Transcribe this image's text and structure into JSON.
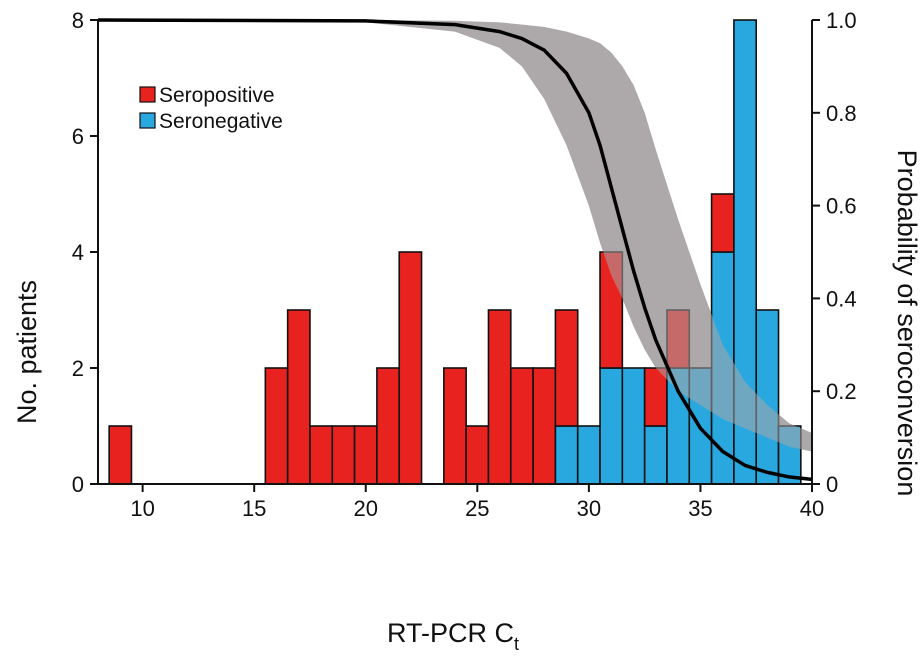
{
  "chart_data": {
    "type": "bar",
    "stacked": true,
    "bin_width": 1,
    "x": [
      9,
      16,
      17,
      18,
      19,
      20,
      21,
      22,
      24,
      25,
      26,
      27,
      28,
      29,
      30,
      31,
      32,
      33,
      34,
      35,
      36,
      37,
      38,
      39
    ],
    "series": [
      {
        "name": "Seronegative",
        "color": "#29a8e0",
        "values": [
          0,
          0,
          0,
          0,
          0,
          0,
          0,
          0,
          0,
          0,
          0,
          0,
          0,
          1,
          1,
          2,
          2,
          1,
          2,
          2,
          4,
          8,
          3,
          1
        ]
      },
      {
        "name": "Seropositive",
        "color": "#e8231f",
        "values": [
          1,
          2,
          3,
          1,
          1,
          1,
          2,
          4,
          2,
          1,
          3,
          2,
          2,
          2,
          0,
          2,
          0,
          1,
          1,
          0,
          1,
          0,
          0,
          0
        ]
      }
    ],
    "xlabel": "RT-PCR C",
    "xlabel_sub": "t",
    "ylabel": "No. patients",
    "y2label": "Probability of seroconversion",
    "xlim": [
      8,
      40
    ],
    "ylim": [
      0,
      8
    ],
    "y2lim": [
      0,
      1
    ],
    "xticks": [
      10,
      15,
      20,
      25,
      30,
      35,
      40
    ],
    "yticks": [
      0,
      2,
      4,
      6,
      8
    ],
    "y2ticks": [
      0,
      0.2,
      0.4,
      0.6,
      0.8,
      1.0
    ],
    "y2ticklabels": [
      "0",
      "0.2",
      "0.4",
      "0.6",
      "0.8",
      "1.0"
    ],
    "legend_position": "top-left",
    "grid": false,
    "curve": {
      "name": "Probability of seroconversion",
      "color": "#000000",
      "x": [
        8,
        20,
        24,
        26,
        27,
        28,
        29,
        30,
        30.5,
        31,
        31.5,
        32,
        32.5,
        33,
        34,
        35,
        36,
        37,
        38,
        39,
        40
      ],
      "y": [
        1.0,
        0.998,
        0.99,
        0.975,
        0.96,
        0.935,
        0.885,
        0.8,
        0.73,
        0.64,
        0.55,
        0.46,
        0.38,
        0.31,
        0.2,
        0.12,
        0.07,
        0.04,
        0.025,
        0.015,
        0.01
      ],
      "ci_color": "#a9a4a6",
      "ci_lower": [
        1.0,
        0.995,
        0.975,
        0.94,
        0.9,
        0.83,
        0.73,
        0.6,
        0.52,
        0.45,
        0.4,
        0.34,
        0.29,
        0.25,
        0.2,
        0.17,
        0.14,
        0.12,
        0.1,
        0.08,
        0.07
      ],
      "ci_upper": [
        1.0,
        1.0,
        0.998,
        0.995,
        0.99,
        0.985,
        0.975,
        0.96,
        0.95,
        0.93,
        0.9,
        0.86,
        0.8,
        0.72,
        0.57,
        0.43,
        0.3,
        0.22,
        0.17,
        0.13,
        0.11
      ]
    }
  }
}
